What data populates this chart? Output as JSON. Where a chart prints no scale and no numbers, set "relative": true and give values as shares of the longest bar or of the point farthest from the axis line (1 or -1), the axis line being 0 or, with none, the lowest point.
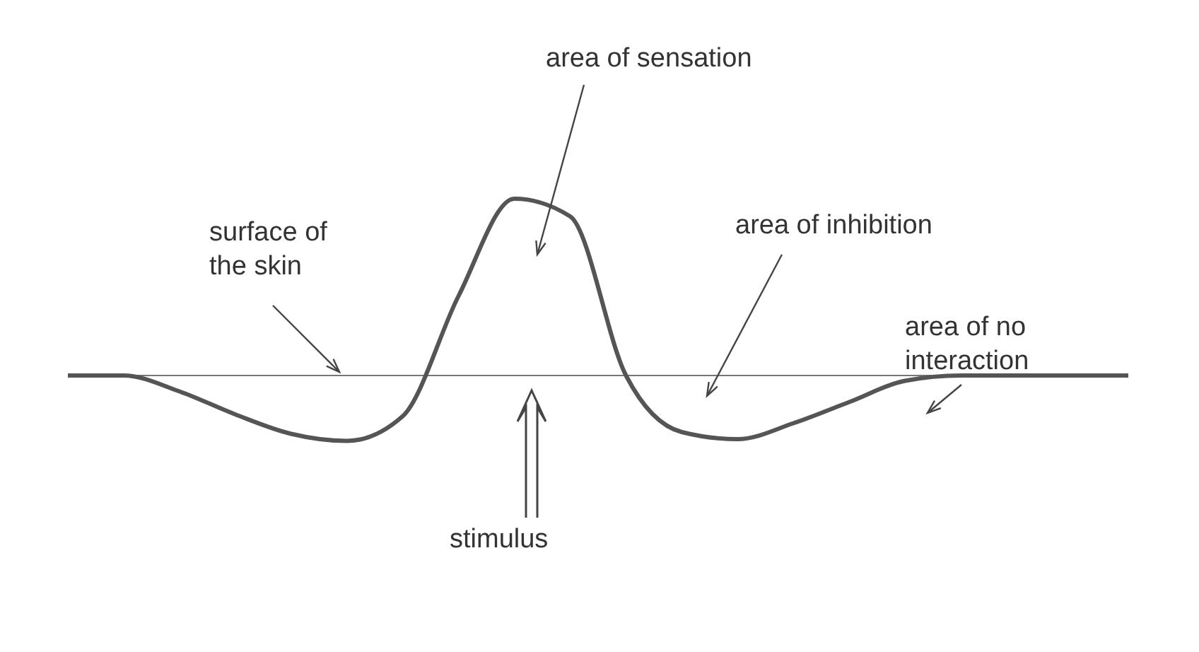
{
  "chart_data": {
    "type": "line",
    "relative": true,
    "categories": [
      null,
      null,
      null,
      null,
      null,
      null,
      null,
      null,
      null,
      null,
      null,
      null,
      null,
      null,
      null,
      null,
      null,
      null,
      null,
      null
    ],
    "series": [
      {
        "color": "#555555",
        "values": [
          0,
          0,
          -0.09,
          -0.22,
          -0.33,
          -0.37,
          -0.23,
          0.45,
          1,
          0.9,
          0,
          -0.32,
          -0.36,
          -0.27,
          -0.15,
          -0.03,
          0,
          0,
          0,
          0
        ]
      }
    ],
    "ref_lines": [
      {
        "axis": "y",
        "value": 0,
        "color": "#777777"
      }
    ],
    "annotations": [
      "area of sensation",
      "surface of the skin",
      "area of inhibition",
      "area of no interaction",
      "stimulus"
    ],
    "marker": "none",
    "line_style": "solid"
  }
}
